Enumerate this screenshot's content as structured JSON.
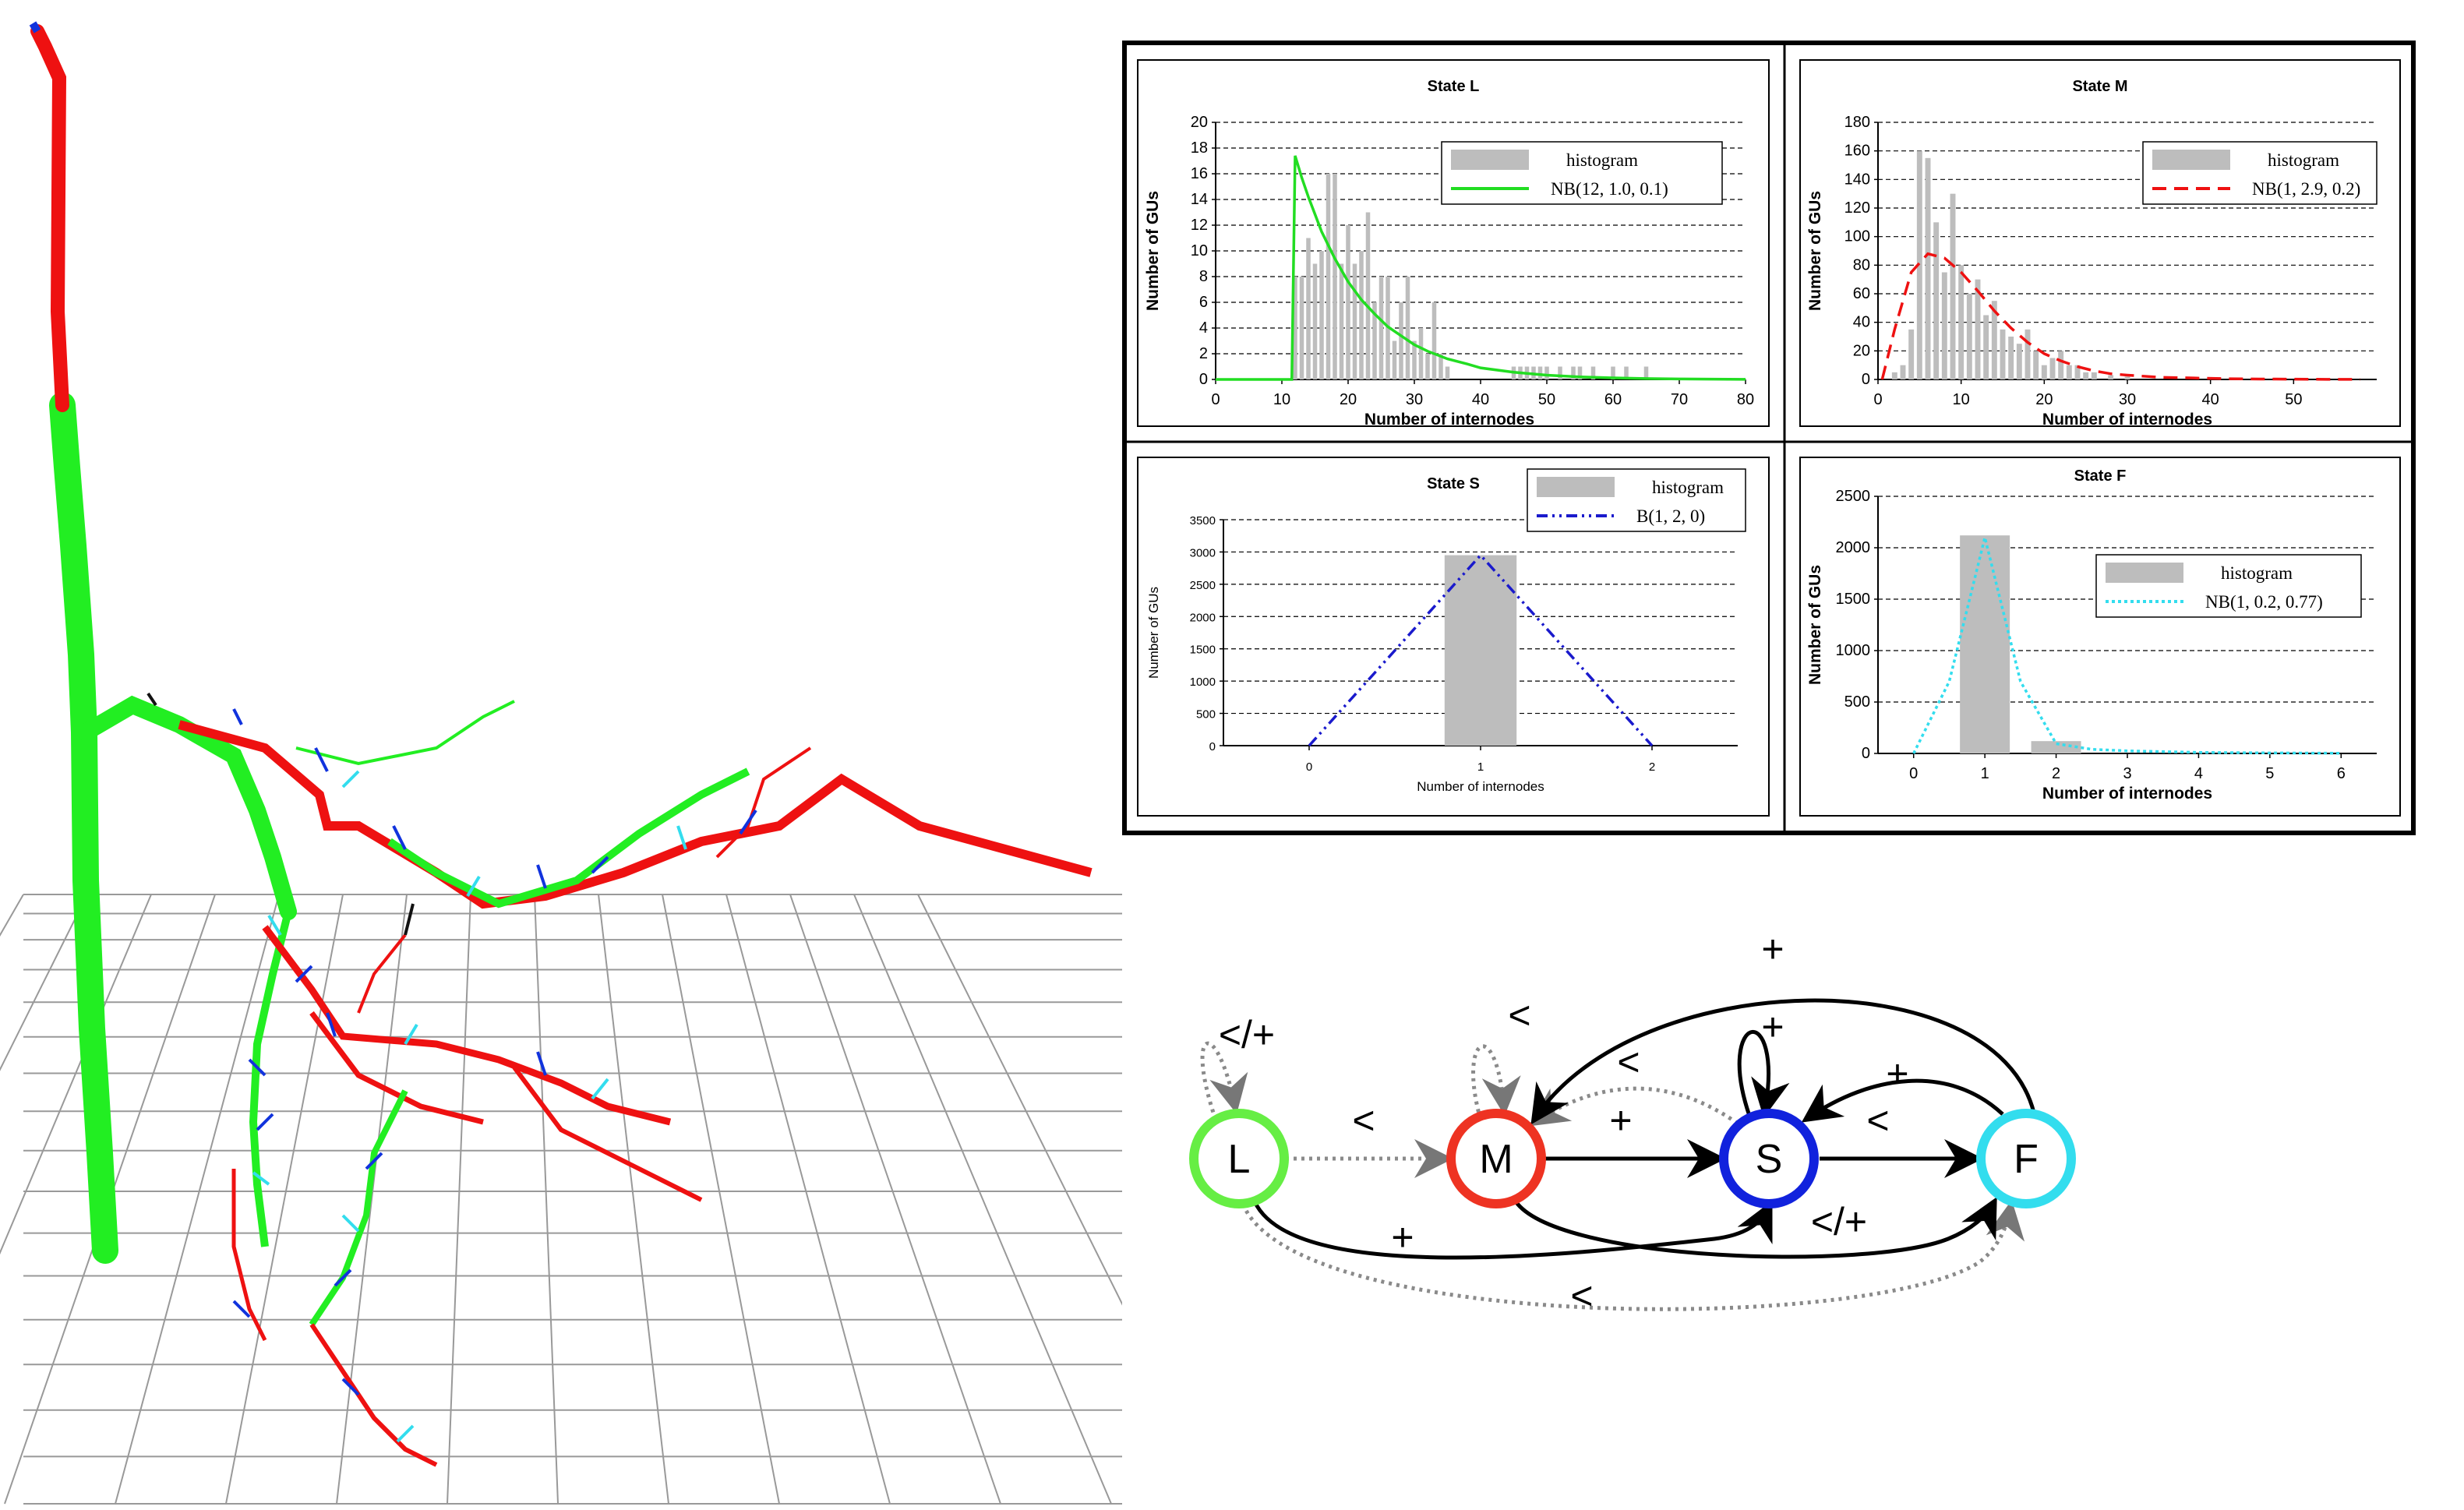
{
  "chart_data": [
    {
      "type": "bar",
      "title": "State L",
      "xlabel": "Number of internodes",
      "ylabel": "Number of GUs",
      "xlim": [
        0,
        80
      ],
      "ylim": [
        0,
        20
      ],
      "xticks": [
        0,
        10,
        20,
        30,
        40,
        50,
        60,
        70,
        80
      ],
      "yticks": [
        0,
        2,
        4,
        6,
        8,
        10,
        12,
        14,
        16,
        18,
        20
      ],
      "grid": "horizontal-dashed",
      "legend": {
        "position": "top-right",
        "entries": [
          "histogram",
          "NB(12, 1.0, 0.1)"
        ]
      },
      "histogram": {
        "x": [
          12,
          13,
          14,
          15,
          16,
          17,
          18,
          19,
          20,
          21,
          22,
          23,
          24,
          25,
          26,
          27,
          28,
          29,
          30,
          31,
          32,
          33,
          34,
          35,
          45,
          46,
          47,
          48,
          49,
          50,
          52,
          54,
          55,
          57,
          60,
          62,
          65
        ],
        "values": [
          8,
          8,
          11,
          9,
          10,
          16,
          16,
          9,
          12,
          9,
          10,
          13,
          6,
          8,
          8,
          3,
          6,
          8,
          3,
          4,
          2,
          6,
          2,
          1,
          1,
          1,
          1,
          1,
          1,
          1,
          1,
          1,
          1,
          1,
          1,
          1,
          1
        ]
      },
      "series": [
        {
          "name": "NB(12, 1.0, 0.1)",
          "color": "#22dd22",
          "style": "solid",
          "x": [
            0,
            11.5,
            12,
            13,
            14,
            16,
            18,
            20,
            22,
            24,
            26,
            28,
            30,
            32,
            35,
            38,
            40,
            45,
            50,
            55,
            60,
            65,
            70,
            75,
            80
          ],
          "values": [
            0,
            0,
            17.4,
            15.7,
            14.2,
            11.5,
            9.4,
            7.6,
            6.2,
            5.1,
            4.1,
            3.4,
            2.7,
            2.2,
            1.6,
            1.2,
            0.9,
            0.56,
            0.33,
            0.2,
            0.12,
            0.07,
            0.04,
            0.02,
            0.01
          ]
        }
      ]
    },
    {
      "type": "bar",
      "title": "State M",
      "xlabel": "Number of internodes",
      "ylabel": "Number of GUs",
      "xlim": [
        0,
        60
      ],
      "ylim": [
        0,
        180
      ],
      "xticks": [
        0,
        10,
        20,
        30,
        40,
        50
      ],
      "yticks": [
        0,
        20,
        40,
        60,
        80,
        100,
        120,
        140,
        160,
        180
      ],
      "grid": "horizontal-dashed",
      "legend": {
        "position": "top-right",
        "entries": [
          "histogram",
          "NB(1, 2.9, 0.2)"
        ]
      },
      "histogram": {
        "x": [
          2,
          3,
          4,
          5,
          6,
          7,
          8,
          9,
          10,
          11,
          12,
          13,
          14,
          15,
          16,
          17,
          18,
          19,
          20,
          21,
          22,
          23,
          24,
          25,
          26,
          28,
          30
        ],
        "values": [
          5,
          10,
          35,
          160,
          155,
          110,
          75,
          130,
          80,
          60,
          70,
          45,
          55,
          35,
          30,
          25,
          35,
          20,
          10,
          15,
          20,
          10,
          10,
          5,
          5,
          3,
          2
        ]
      },
      "series": [
        {
          "name": "NB(1, 2.9, 0.2)",
          "color": "#ee1111",
          "style": "dashed",
          "x": [
            0.5,
            2,
            4,
            6,
            8,
            10,
            12,
            14,
            16,
            18,
            20,
            22,
            24,
            26,
            28,
            30,
            34,
            38,
            42,
            46,
            50,
            54,
            58
          ],
          "values": [
            0,
            35,
            75,
            88,
            85,
            75,
            62,
            48,
            36,
            26,
            18,
            13,
            9,
            6,
            4,
            3,
            1.5,
            1,
            0.5,
            0.3,
            0.2,
            0.1,
            0.1
          ]
        }
      ]
    },
    {
      "type": "bar",
      "title": "State S",
      "xlabel": "Number of internodes",
      "ylabel": "Number of GUs",
      "xlim": [
        -0.5,
        2.5
      ],
      "ylim": [
        0,
        3500
      ],
      "xticks": [
        0,
        1,
        2
      ],
      "yticks": [
        0,
        500,
        1000,
        1500,
        2000,
        2500,
        3000,
        3500
      ],
      "grid": "horizontal-dashed",
      "legend": {
        "position": "top-right",
        "entries": [
          "histogram",
          "B(1, 2, 0)"
        ]
      },
      "histogram": {
        "x": [
          1
        ],
        "values": [
          2950
        ]
      },
      "series": [
        {
          "name": "B(1, 2, 0)",
          "color": "#1a1acc",
          "style": "dash-dot",
          "x": [
            0,
            1,
            2
          ],
          "values": [
            0,
            2950,
            0
          ]
        }
      ]
    },
    {
      "type": "bar",
      "title": "State F",
      "xlabel": "Number of internodes",
      "ylabel": "Number of GUs",
      "xlim": [
        -0.5,
        6.5
      ],
      "ylim": [
        0,
        2500
      ],
      "xticks": [
        0,
        1,
        2,
        3,
        4,
        5,
        6
      ],
      "yticks": [
        0,
        500,
        1000,
        1500,
        2000,
        2500
      ],
      "grid": "horizontal-dashed",
      "legend": {
        "position": "middle-right",
        "entries": [
          "histogram",
          "NB(1, 0.2, 0.77)"
        ]
      },
      "histogram": {
        "x": [
          1,
          2
        ],
        "values": [
          2120,
          120
        ]
      },
      "series": [
        {
          "name": "NB(1, 0.2, 0.77)",
          "color": "#33ddee",
          "style": "dotted",
          "x": [
            0,
            0.5,
            1,
            1.5,
            2,
            2.5,
            3,
            4,
            5,
            6
          ],
          "values": [
            0,
            700,
            2100,
            700,
            95,
            40,
            25,
            10,
            5,
            2
          ]
        }
      ]
    }
  ],
  "state_graph": {
    "nodes": [
      {
        "id": "L",
        "label": "L",
        "color": "#66ee44"
      },
      {
        "id": "M",
        "label": "M",
        "color": "#ee3322"
      },
      {
        "id": "S",
        "label": "S",
        "color": "#1122dd"
      },
      {
        "id": "F",
        "label": "F",
        "color": "#33ddee"
      }
    ],
    "edges": [
      {
        "from": "L",
        "to": "L",
        "label": "</+",
        "style": "dotted"
      },
      {
        "from": "L",
        "to": "M",
        "label": "<",
        "style": "dotted"
      },
      {
        "from": "L",
        "to": "S",
        "label": "+",
        "style": "solid"
      },
      {
        "from": "L",
        "to": "F",
        "label": "<",
        "style": "dotted"
      },
      {
        "from": "M",
        "to": "M",
        "label": "<",
        "style": "dotted"
      },
      {
        "from": "M",
        "to": "S",
        "label": "+",
        "style": "solid"
      },
      {
        "from": "M",
        "to": "F",
        "label": "</+",
        "style": "solid"
      },
      {
        "from": "S",
        "to": "S",
        "label": "+",
        "style": "solid"
      },
      {
        "from": "S",
        "to": "F",
        "label": "<",
        "style": "solid"
      },
      {
        "from": "S",
        "to": "M",
        "label": "<",
        "style": "dotted"
      },
      {
        "from": "F",
        "to": "S",
        "label": "+",
        "style": "solid"
      },
      {
        "from": "F",
        "to": "M",
        "label": "+",
        "style": "solid"
      }
    ]
  },
  "scene": {
    "colors": {
      "long_shoot": "#ee1111",
      "medium_shoot": "#22ee22",
      "short_shoot": "#1133dd",
      "flowering_shoot": "#33ddee",
      "grid": "#999999"
    }
  }
}
